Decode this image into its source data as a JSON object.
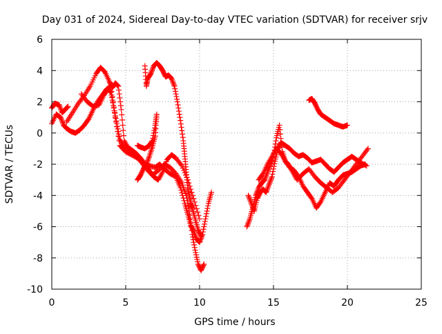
{
  "chart_data": {
    "type": "scatter",
    "title": "Day 031 of 2024, Sidereal Day-to-day VTEC variation (SDTVAR) for receiver srjv",
    "xlabel": "GPS time / hours",
    "ylabel": "SDTVAR / TECUs",
    "xlim": [
      0,
      25
    ],
    "ylim": [
      -10,
      6
    ],
    "xticks": [
      0,
      5,
      10,
      15,
      20,
      25
    ],
    "yticks": [
      -10,
      -8,
      -6,
      -4,
      -2,
      0,
      2,
      4,
      6
    ],
    "grid": true,
    "legend": "none",
    "marker": "+",
    "marker_color": "#ff0000",
    "series": [
      {
        "x": [
          0,
          0.2,
          0.5,
          0.7,
          0.9,
          1.1
        ],
        "y": [
          1.6,
          1.9,
          1.8,
          1.3,
          1.5,
          1.7
        ]
      },
      {
        "x": [
          0,
          0.3,
          0.6,
          0.8,
          1.0,
          1.3,
          1.6,
          1.9,
          2.2,
          2.5,
          2.8,
          3.1,
          3.4,
          3.7,
          4.0,
          4.3,
          4.6,
          5.0,
          5.4,
          5.8,
          6.2,
          6.6,
          7.0,
          7.3,
          7.6,
          8.0,
          8.4,
          8.7,
          9.0,
          9.2,
          9.4,
          9.6,
          9.8,
          10.0,
          10.2,
          10.4,
          10.6,
          10.8
        ],
        "y": [
          0.6,
          1.2,
          1.0,
          0.5,
          0.3,
          0.1,
          0.0,
          0.2,
          0.5,
          0.9,
          1.5,
          2.0,
          2.4,
          2.8,
          3.0,
          1.0,
          -0.8,
          -1.2,
          -1.4,
          -1.6,
          -1.9,
          -2.1,
          -2.2,
          -2.0,
          -2.3,
          -2.6,
          -2.8,
          -3.5,
          -4.5,
          -5.2,
          -5.9,
          -6.3,
          -6.8,
          -7.0,
          -6.5,
          -5.5,
          -4.5,
          -3.8
        ]
      },
      {
        "x": [
          1.0,
          1.4,
          1.8,
          2.2,
          2.6,
          3.0,
          3.3,
          3.6,
          3.9,
          4.1,
          4.3,
          4.5,
          4.7,
          4.9,
          5.2,
          5.6,
          6.0,
          6.4,
          6.8,
          7.2,
          7.6,
          8.0,
          8.4,
          8.8,
          9.1,
          9.3,
          9.5,
          9.7,
          9.9,
          10.1,
          10.3
        ],
        "y": [
          0.7,
          1.3,
          1.9,
          2.4,
          3.0,
          3.8,
          4.2,
          3.9,
          3.3,
          2.9,
          3.2,
          3.0,
          1.5,
          -0.5,
          -1.0,
          -1.4,
          -1.8,
          -2.3,
          -2.7,
          -2.4,
          -2.0,
          -2.2,
          -2.6,
          -3.2,
          -4.0,
          -5.0,
          -6.5,
          -7.5,
          -8.4,
          -8.8,
          -8.4
        ]
      },
      {
        "x": [
          2.0,
          2.4,
          2.8,
          3.2,
          3.5,
          3.8,
          4.0,
          4.2,
          4.4,
          4.6,
          4.9,
          5.3,
          5.7,
          6.0,
          6.3,
          6.6,
          6.9,
          7.2,
          7.5,
          7.8,
          8.1,
          8.4,
          8.8,
          9.2,
          9.6,
          10.0
        ],
        "y": [
          2.5,
          2.0,
          1.7,
          1.8,
          2.4,
          2.8,
          2.6,
          1.6,
          0.6,
          -0.4,
          -0.9,
          -1.0,
          -1.3,
          -1.6,
          -2.0,
          -2.4,
          -2.8,
          -3.0,
          -2.5,
          -1.7,
          -1.4,
          -1.6,
          -2.1,
          -3.0,
          -4.2,
          -5.5
        ]
      },
      {
        "x": [
          6.3,
          6.4,
          6.5,
          6.7,
          6.9,
          7.1,
          7.3,
          7.5,
          7.7,
          7.9,
          8.1,
          8.3,
          8.5,
          8.7,
          8.9,
          9.0,
          9.1,
          9.2,
          9.3,
          9.4,
          9.5,
          9.7,
          9.9,
          10.1
        ],
        "y": [
          4.3,
          3.0,
          3.5,
          3.8,
          4.3,
          4.5,
          4.3,
          4.0,
          3.6,
          3.7,
          3.5,
          3.0,
          2.0,
          0.8,
          -0.5,
          -1.5,
          -2.5,
          -3.5,
          -4.0,
          -4.5,
          -4.8,
          -5.5,
          -6.2,
          -6.6
        ]
      },
      {
        "x": [
          5.8,
          6.0,
          6.3,
          6.6,
          6.8,
          7.0,
          7.1,
          7.0,
          6.8,
          6.6,
          6.4,
          6.2,
          6.0,
          5.8
        ],
        "y": [
          -0.8,
          -0.9,
          -1.0,
          -0.8,
          -0.5,
          0.5,
          1.2,
          -0.2,
          -0.9,
          -1.5,
          -2.0,
          -2.3,
          -2.7,
          -3.0
        ]
      },
      {
        "x": [
          13.2,
          13.4,
          13.6,
          13.8,
          14.0,
          14.2,
          14.4,
          14.6,
          14.8,
          15.0,
          15.2,
          15.4,
          15.6,
          15.8,
          16.0,
          16.3,
          16.6,
          17.0,
          17.4,
          17.8,
          18.2,
          18.6,
          19.0,
          19.4,
          19.8,
          20.2,
          20.6,
          21.0,
          21.4
        ],
        "y": [
          -6.0,
          -5.5,
          -4.8,
          -4.0,
          -3.5,
          -3.2,
          -3.0,
          -2.5,
          -2.0,
          -1.5,
          -0.3,
          0.5,
          -1.2,
          -1.8,
          -2.0,
          -2.5,
          -3.0,
          -2.6,
          -2.3,
          -2.8,
          -3.2,
          -3.5,
          -3.8,
          -3.5,
          -3.0,
          -2.5,
          -2.0,
          -1.5,
          -1.0
        ]
      },
      {
        "x": [
          13.3,
          13.5,
          13.7,
          13.9,
          14.1,
          14.3,
          14.5,
          14.7,
          14.9,
          15.1,
          15.3,
          15.5,
          15.8,
          16.1,
          16.4,
          16.7,
          17.0,
          17.3,
          17.6,
          17.9,
          18.2,
          18.5,
          18.8,
          19.1,
          19.4,
          19.7,
          20.0,
          20.3,
          20.6,
          20.9,
          21.3
        ],
        "y": [
          -4.0,
          -4.5,
          -5.0,
          -4.2,
          -3.8,
          -3.6,
          -3.8,
          -3.3,
          -2.8,
          -1.8,
          -1.0,
          -0.6,
          -0.8,
          -1.0,
          -1.3,
          -1.5,
          -1.4,
          -1.6,
          -1.9,
          -1.8,
          -1.7,
          -2.0,
          -2.3,
          -2.5,
          -2.2,
          -1.9,
          -1.7,
          -1.5,
          -1.7,
          -1.9,
          -2.1
        ]
      },
      {
        "x": [
          14.0,
          14.3,
          14.6,
          14.9,
          15.2,
          15.5,
          15.8,
          16.1,
          16.4,
          16.7,
          17.0,
          17.3,
          17.6,
          17.9,
          18.2,
          18.5,
          18.8,
          19.1,
          19.4,
          19.7,
          20.0,
          20.3,
          20.6,
          20.9,
          21.2
        ],
        "y": [
          -3.0,
          -2.6,
          -2.0,
          -1.5,
          -1.0,
          -1.3,
          -1.8,
          -2.2,
          -2.4,
          -2.8,
          -3.4,
          -3.8,
          -4.2,
          -4.8,
          -4.4,
          -3.8,
          -3.2,
          -3.4,
          -3.0,
          -2.7,
          -2.6,
          -2.5,
          -2.3,
          -2.1,
          -2.0
        ]
      },
      {
        "x": [
          17.4,
          17.6,
          17.8,
          18.0,
          18.2,
          18.5,
          18.8,
          19.1,
          19.4,
          19.7,
          20.0
        ],
        "y": [
          2.1,
          2.2,
          1.9,
          1.5,
          1.2,
          1.0,
          0.8,
          0.6,
          0.5,
          0.4,
          0.5
        ]
      }
    ]
  }
}
